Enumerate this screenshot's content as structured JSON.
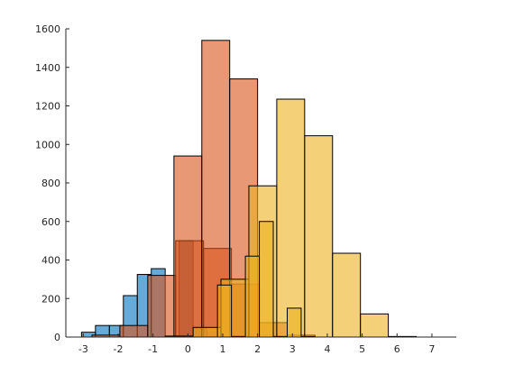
{
  "chart_data": {
    "type": "bar",
    "title": "",
    "xlabel": "",
    "ylabel": "",
    "xlim": [
      -3.5,
      7.7
    ],
    "ylim": [
      0,
      1600
    ],
    "grid": false,
    "xticks": [
      "-3",
      "-2",
      "-1",
      "0",
      "1",
      "2",
      "3",
      "4",
      "5",
      "6",
      "7"
    ],
    "yticks": [
      "0",
      "200",
      "400",
      "600",
      "800",
      "1000",
      "1200",
      "1400",
      "1600"
    ],
    "series": [
      {
        "color": "#0072BD",
        "opacity": 0.6,
        "bins": [
          {
            "x0": -3.05,
            "x1": -2.65,
            "value": 25
          },
          {
            "x0": -2.65,
            "x1": -2.25,
            "value": 60
          },
          {
            "x0": -2.25,
            "x1": -1.85,
            "value": 60
          },
          {
            "x0": -1.85,
            "x1": -1.45,
            "value": 215
          },
          {
            "x0": -1.45,
            "x1": -1.05,
            "value": 325
          },
          {
            "x0": -1.05,
            "x1": -0.65,
            "value": 355
          },
          {
            "x0": -0.65,
            "x1": -0.25,
            "value": 3
          },
          {
            "x0": -0.25,
            "x1": 0.15,
            "value": 500
          },
          {
            "x0": 0.15,
            "x1": 0.55,
            "value": 45
          },
          {
            "x0": 0.55,
            "x1": 0.95,
            "value": 3
          },
          {
            "x0": 0.95,
            "x1": 1.35,
            "value": 3
          }
        ]
      },
      {
        "color": "#D95319",
        "opacity": 0.6,
        "bins": [
          {
            "x0": -2.75,
            "x1": -1.95,
            "value": 10
          },
          {
            "x0": -1.95,
            "x1": -1.15,
            "value": 60
          },
          {
            "x0": -1.15,
            "x1": -0.35,
            "value": 320
          },
          {
            "x0": -0.35,
            "x1": 0.45,
            "value": 500
          },
          {
            "x0": 0.45,
            "x1": 1.25,
            "value": 460
          },
          {
            "x0": 1.25,
            "x1": 2.05,
            "value": 275
          },
          {
            "x0": 2.05,
            "x1": 2.85,
            "value": 75
          },
          {
            "x0": 2.85,
            "x1": 3.65,
            "value": 10
          }
        ]
      },
      {
        "color": "#D95319",
        "opacity": 0.6,
        "bins": [
          {
            "x0": -0.4,
            "x1": 0.4,
            "value": 940
          },
          {
            "x0": 0.4,
            "x1": 1.2,
            "value": 1540
          },
          {
            "x0": 1.2,
            "x1": 2.0,
            "value": 1340
          }
        ]
      },
      {
        "color": "#EDB120",
        "opacity": 0.6,
        "bins": [
          {
            "x0": -0.65,
            "x1": 0.15,
            "value": 5
          },
          {
            "x0": 0.15,
            "x1": 0.95,
            "value": 50
          },
          {
            "x0": 0.95,
            "x1": 1.75,
            "value": 300
          },
          {
            "x0": 1.75,
            "x1": 2.55,
            "value": 785
          },
          {
            "x0": 2.55,
            "x1": 3.35,
            "value": 1235
          },
          {
            "x0": 3.35,
            "x1": 4.15,
            "value": 1045
          },
          {
            "x0": 4.15,
            "x1": 4.95,
            "value": 435
          },
          {
            "x0": 4.95,
            "x1": 5.75,
            "value": 120
          },
          {
            "x0": 5.75,
            "x1": 6.55,
            "value": 3
          }
        ]
      },
      {
        "color": "#EDB120",
        "opacity": 0.6,
        "bins": [
          {
            "x0": 0.85,
            "x1": 1.25,
            "value": 270
          },
          {
            "x0": 1.25,
            "x1": 1.65,
            "value": 3
          },
          {
            "x0": 1.65,
            "x1": 2.05,
            "value": 420
          },
          {
            "x0": 2.05,
            "x1": 2.45,
            "value": 600
          },
          {
            "x0": 2.45,
            "x1": 2.85,
            "value": 3
          },
          {
            "x0": 2.85,
            "x1": 3.25,
            "value": 150
          },
          {
            "x0": 3.25,
            "x1": 3.65,
            "value": 3
          }
        ]
      }
    ]
  }
}
